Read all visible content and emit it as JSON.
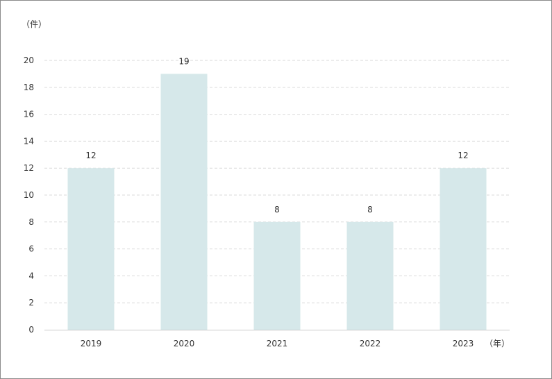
{
  "chart_data": {
    "type": "bar",
    "categories": [
      "2019",
      "2020",
      "2021",
      "2022",
      "2023"
    ],
    "values": [
      12,
      19,
      8,
      8,
      12
    ],
    "data_labels": [
      "12",
      "19",
      "8",
      "8",
      "12"
    ],
    "y_unit_label": "（件）",
    "x_unit_label": "（年）",
    "ylim": [
      0,
      20
    ],
    "y_ticks": [
      "0",
      "2",
      "4",
      "6",
      "8",
      "10",
      "12",
      "14",
      "16",
      "18",
      "20"
    ],
    "grid": true,
    "bar_color": "#d6e8ea",
    "grid_color": "#d9d9d9",
    "axis_color": "#c8c8c8",
    "text_color": "#333333"
  }
}
